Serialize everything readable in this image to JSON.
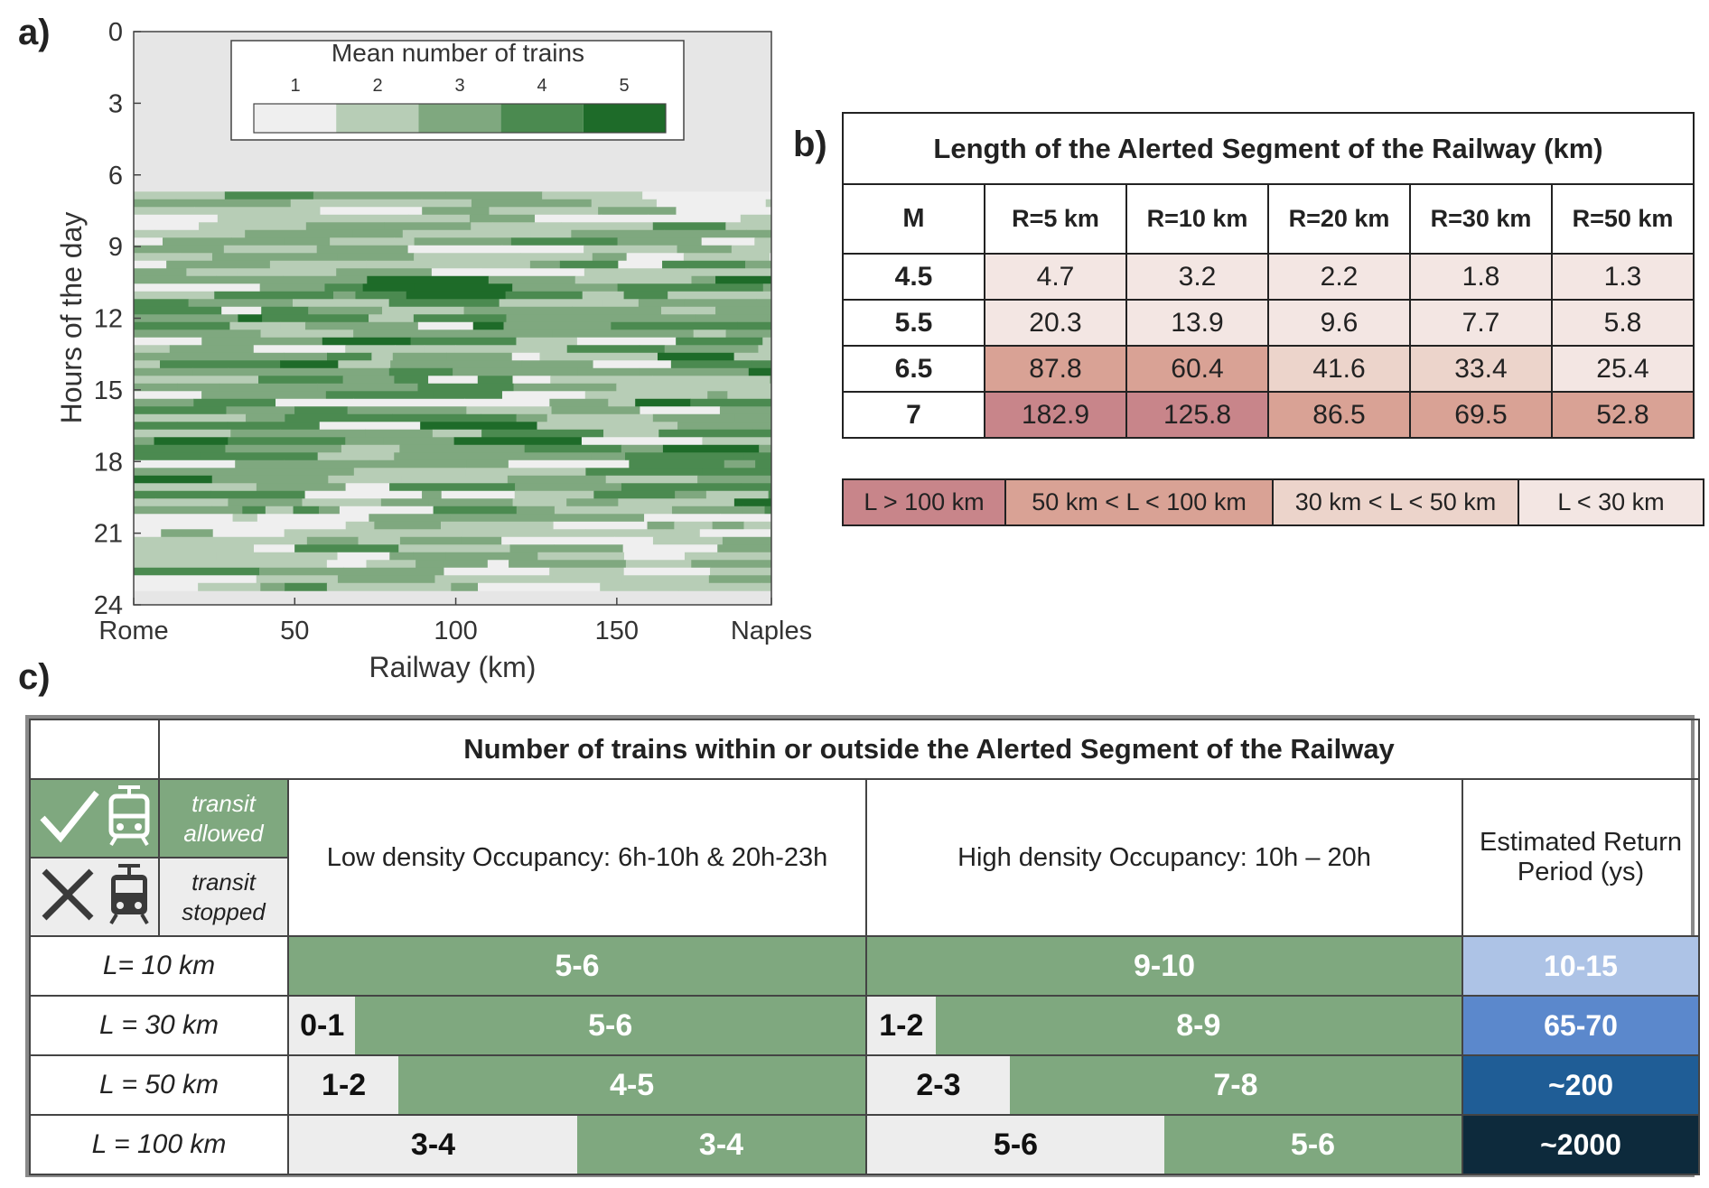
{
  "panel_labels": {
    "a": "a)",
    "b": "b)",
    "c": "c)"
  },
  "chart_data": [
    {
      "type": "heatmap",
      "title": "",
      "xlabel": "Railway (km)",
      "ylabel": "Hours of the day",
      "x_ticks": [
        "Rome",
        "50",
        "100",
        "150",
        "Naples"
      ],
      "x_tick_values": [
        0,
        50,
        100,
        150,
        198
      ],
      "xlim": [
        0,
        198
      ],
      "y_ticks": [
        "0",
        "3",
        "6",
        "9",
        "12",
        "15",
        "18",
        "21",
        "24"
      ],
      "ylim": [
        0,
        24
      ],
      "y_reversed": true,
      "legend": {
        "title": "Mean number of trains",
        "labels": [
          "1",
          "2",
          "3",
          "4",
          "5"
        ],
        "colors": [
          "#efefef",
          "#b7cdb6",
          "#7fa87f",
          "#4b8a50",
          "#1e6b29"
        ],
        "placement": "top"
      },
      "background_color": "#e6e6e6",
      "active_hours": [
        6.7,
        23.3
      ],
      "pattern": "Higher train density (4-5) between roughly 10h and 20h; lower density (1-3) between 6h-10h and 20h-23h; no trains 0h-6h."
    },
    {
      "type": "table",
      "title": "Length of the Alerted Segment of the Railway (km)",
      "columns": [
        "M",
        "R=5 km",
        "R=10 km",
        "R=20 km",
        "R=30 km",
        "R=50 km"
      ],
      "rows": [
        {
          "M": "4.5",
          "values": [
            "4.7",
            "3.2",
            "2.2",
            "1.8",
            "1.3"
          ]
        },
        {
          "M": "5.5",
          "values": [
            "20.3",
            "13.9",
            "9.6",
            "7.7",
            "5.8"
          ]
        },
        {
          "M": "6.5",
          "values": [
            "87.8",
            "60.4",
            "41.6",
            "33.4",
            "25.4"
          ]
        },
        {
          "M": "7",
          "values": [
            "182.9",
            "125.8",
            "86.5",
            "69.5",
            "52.8"
          ]
        }
      ],
      "legend": [
        {
          "label": "L > 100 km",
          "color": "#c8858a"
        },
        {
          "label": "50 km < L < 100 km",
          "color": "#d9a295"
        },
        {
          "label": "30 km < L < 50 km",
          "color": "#ecd4cb"
        },
        {
          "label": "L < 30 km",
          "color": "#f3e6e3"
        }
      ]
    },
    {
      "type": "table",
      "title": "Number of trains within or outside the Alerted Segment of the Railway",
      "legend_allowed": "transit allowed",
      "legend_allowed_lines": [
        "transit",
        "allowed"
      ],
      "legend_stopped": "transit stopped",
      "legend_stopped_lines": [
        "transit",
        "stopped"
      ],
      "columns": [
        "Low density Occupancy: 6h-10h & 20h-23h",
        "High density Occupancy: 10h – 20h",
        "Estimated Return Period (ys)"
      ],
      "rows": [
        {
          "label": "L= 10 km",
          "low": {
            "stopped": "",
            "allowed": "5-6"
          },
          "high": {
            "stopped": "",
            "allowed": "9-10"
          },
          "return_period": "10-15",
          "rp_color": "#adc3e6"
        },
        {
          "label": "L = 30 km",
          "low": {
            "stopped": "0-1",
            "allowed": "5-6"
          },
          "high": {
            "stopped": "1-2",
            "allowed": "8-9"
          },
          "return_period": "65-70",
          "rp_color": "#5b88cc"
        },
        {
          "label": "L = 50 km",
          "low": {
            "stopped": "1-2",
            "allowed": "4-5"
          },
          "high": {
            "stopped": "2-3",
            "allowed": "7-8"
          },
          "return_period": "~200",
          "rp_color": "#1f5d96"
        },
        {
          "label": "L = 100 km",
          "low": {
            "stopped": "3-4",
            "allowed": "3-4"
          },
          "high": {
            "stopped": "5-6",
            "allowed": "5-6"
          },
          "return_period": "~2000",
          "rp_color": "#0d2a3c"
        }
      ]
    }
  ]
}
